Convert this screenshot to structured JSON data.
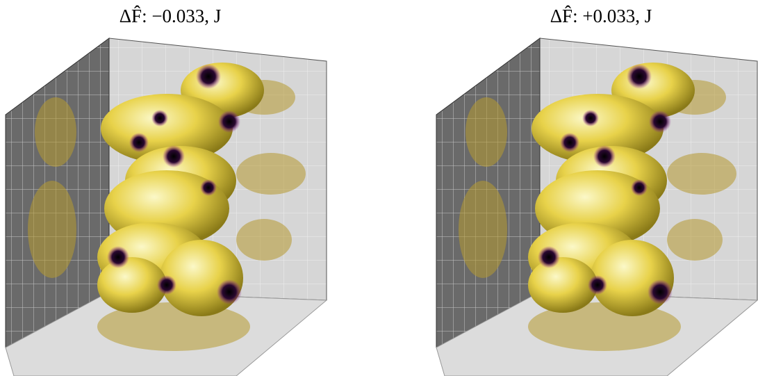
{
  "panels": [
    {
      "title": "ΔF̂: −0.033, J"
    },
    {
      "title": "ΔF̂: +0.033, J"
    }
  ]
}
